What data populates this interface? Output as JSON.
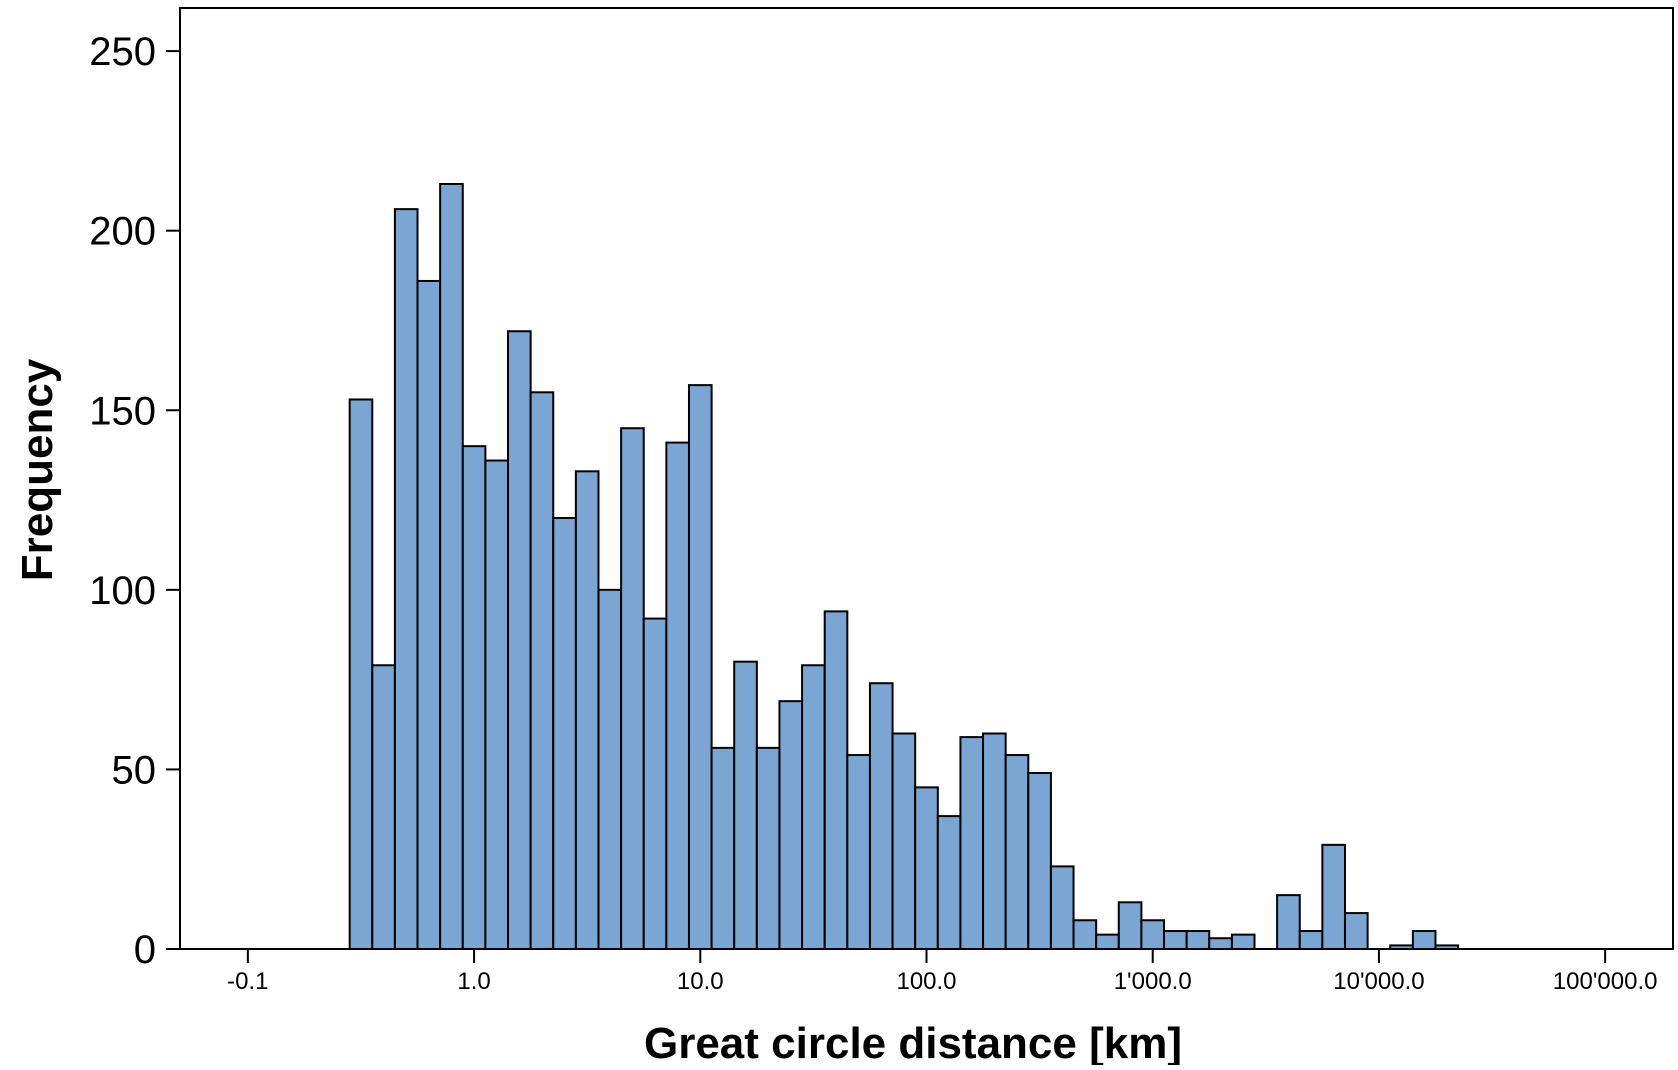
{
  "chart_data": {
    "type": "bar",
    "xlabel": "Great circle distance [km]",
    "ylabel": "Frequency",
    "ylim": [
      0,
      262
    ],
    "y_ticks": [
      {
        "value": 0,
        "label": "0"
      },
      {
        "value": 50,
        "label": "50"
      },
      {
        "value": 100,
        "label": "100"
      },
      {
        "value": 150,
        "label": "150"
      },
      {
        "value": 200,
        "label": "200"
      },
      {
        "value": 250,
        "label": "250"
      }
    ],
    "x_scale": "log (shifted)",
    "x_ticks": [
      {
        "value": 0.1,
        "label": "-0.1"
      },
      {
        "value": 1.0,
        "label": "1.0"
      },
      {
        "value": 10.0,
        "label": "10.0"
      },
      {
        "value": 100.0,
        "label": "100.0"
      },
      {
        "value": 1000.0,
        "label": "1'000.0"
      },
      {
        "value": 10000.0,
        "label": "10'000.0"
      },
      {
        "value": 100000.0,
        "label": "100'000.0"
      }
    ],
    "x_range_log10": [
      -1.3,
      5.3
    ],
    "bin_start_log10": -0.55,
    "bin_width_log10": 0.1,
    "values": [
      153,
      79,
      206,
      186,
      213,
      140,
      136,
      172,
      155,
      120,
      133,
      100,
      145,
      92,
      141,
      157,
      56,
      80,
      56,
      69,
      79,
      94,
      54,
      74,
      60,
      45,
      37,
      59,
      60,
      54,
      49,
      23,
      8,
      4,
      13,
      8,
      5,
      5,
      3,
      4,
      0,
      15,
      5,
      29,
      10,
      0,
      1,
      5,
      1
    ],
    "bar_color": "#7ba6d4",
    "bar_edge_color": "#000000",
    "grid": false,
    "legend": "none"
  }
}
